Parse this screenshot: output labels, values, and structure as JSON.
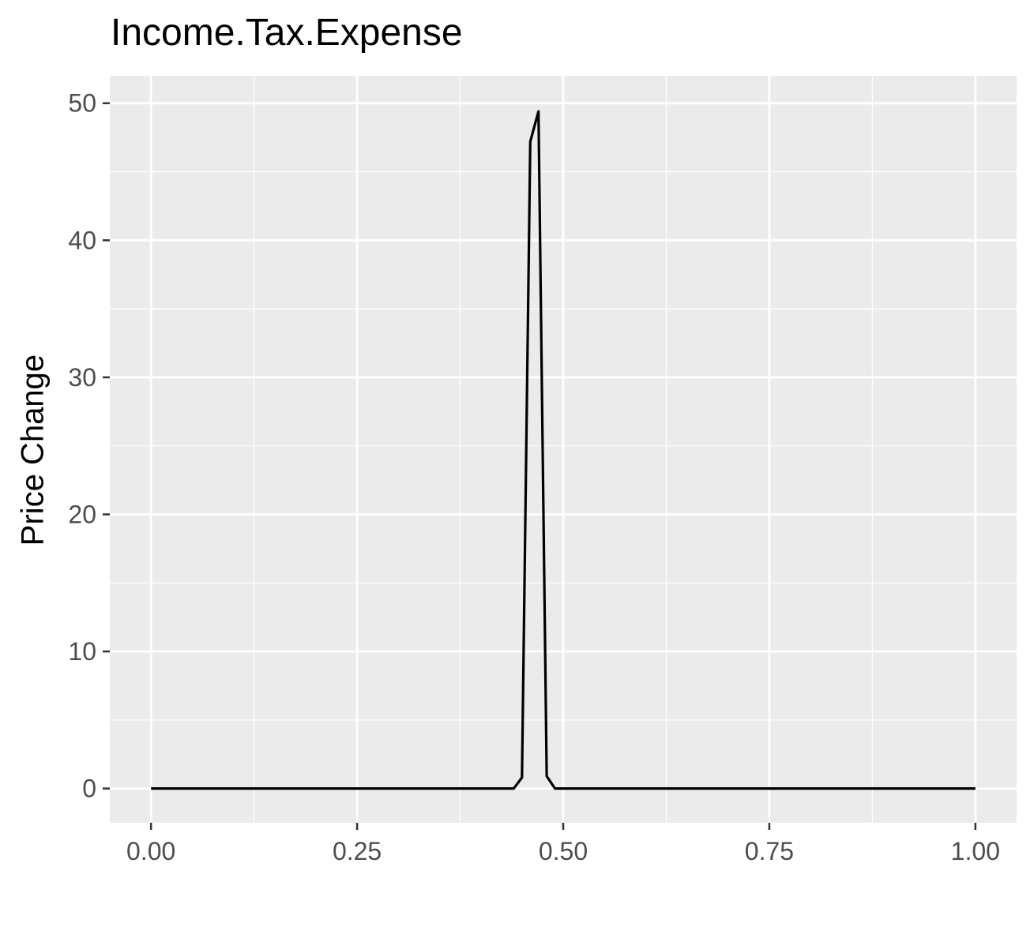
{
  "chart_data": {
    "type": "line",
    "title": "Income.Tax.Expense",
    "xlabel": "",
    "ylabel": "Price Change",
    "xlim": [
      -0.05,
      1.05
    ],
    "ylim": [
      -2.5,
      52
    ],
    "x_ticks": [
      0.0,
      0.25,
      0.5,
      0.75,
      1.0
    ],
    "x_tick_labels": [
      "0.00",
      "0.25",
      "0.50",
      "0.75",
      "1.00"
    ],
    "y_ticks": [
      0,
      10,
      20,
      30,
      40,
      50
    ],
    "y_tick_labels": [
      "0",
      "10",
      "20",
      "30",
      "40",
      "50"
    ],
    "grid": true,
    "background": "#EBEBEB",
    "grid_color": "#FFFFFF",
    "line_color": "#000000",
    "series": [
      {
        "x": [
          0.0,
          0.44,
          0.45,
          0.46,
          0.47,
          0.48,
          0.49,
          1.0
        ],
        "y": [
          0,
          0,
          0.8,
          47.2,
          49.4,
          0.9,
          0,
          0
        ]
      }
    ]
  }
}
